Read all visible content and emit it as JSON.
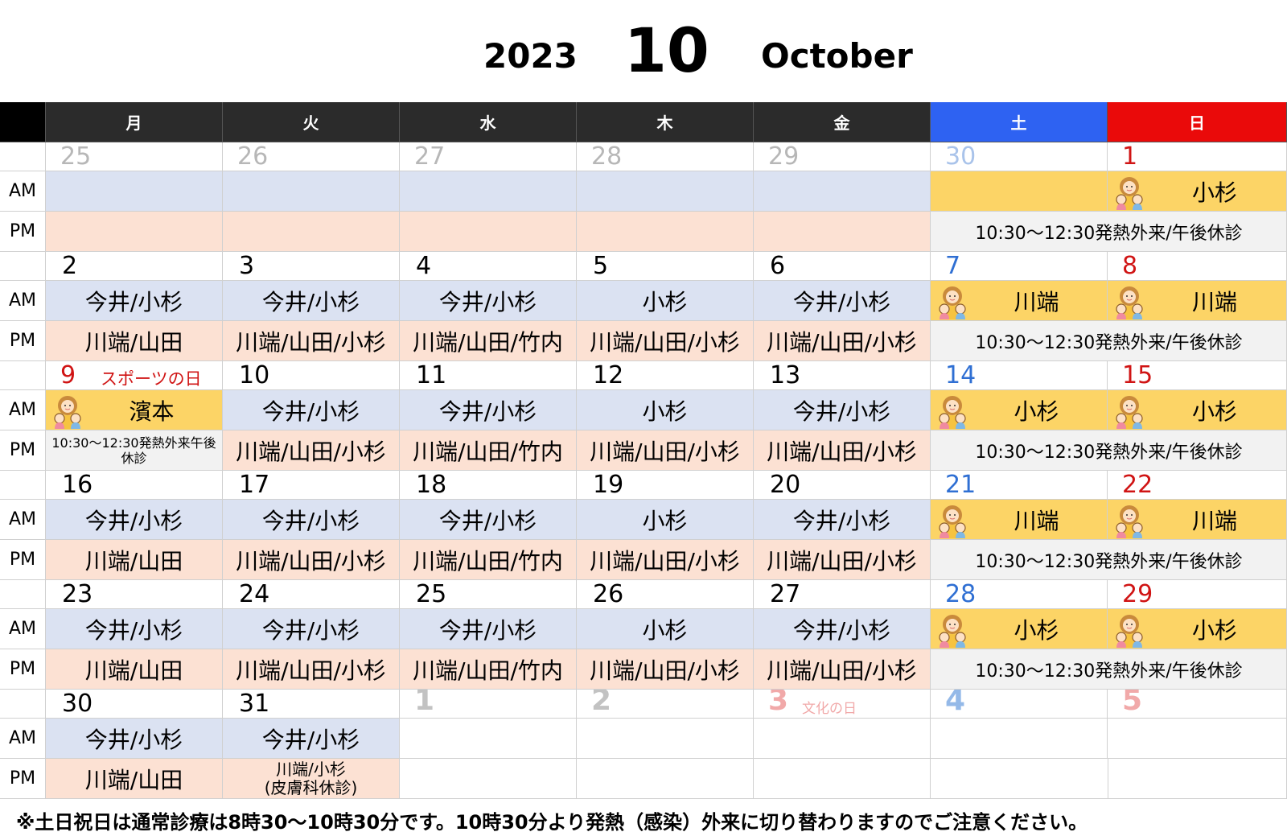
{
  "header": {
    "year": "2023",
    "month_number": "10",
    "month_name": "October"
  },
  "weekdays": [
    "月",
    "火",
    "水",
    "木",
    "金",
    "土",
    "日"
  ],
  "row_labels": {
    "am": "AM",
    "pm": "PM"
  },
  "weekend_pm_note": "10:30～12:30発熱外来/午後休診",
  "colors": {
    "am": "#dbe2f2",
    "pm": "#fce1d3",
    "weekend_am": "#fcd466",
    "weekend_pm": "#f2f2f2",
    "saturday_header": "#2e62f2",
    "sunday_header": "#ea0a0a",
    "header": "#2b2b2b"
  },
  "weeks": [
    {
      "days": [
        {
          "date": "25",
          "style": "muted"
        },
        {
          "date": "26",
          "style": "muted"
        },
        {
          "date": "27",
          "style": "muted"
        },
        {
          "date": "28",
          "style": "muted"
        },
        {
          "date": "29",
          "style": "muted"
        },
        {
          "date": "30",
          "style": "blue-muted"
        },
        {
          "date": "1",
          "style": "red"
        }
      ],
      "am": [
        "",
        "",
        "",
        "",
        "",
        "",
        "小杉"
      ],
      "pm": [
        "",
        "",
        "",
        "",
        ""
      ]
    },
    {
      "days": [
        {
          "date": "2"
        },
        {
          "date": "3"
        },
        {
          "date": "4"
        },
        {
          "date": "5"
        },
        {
          "date": "6"
        },
        {
          "date": "7",
          "style": "blue"
        },
        {
          "date": "8",
          "style": "red"
        }
      ],
      "am": [
        "今井/小杉",
        "今井/小杉",
        "今井/小杉",
        "小杉",
        "今井/小杉",
        "川端",
        "川端"
      ],
      "pm": [
        "川端/山田",
        "川端/山田/小杉",
        "川端/山田/竹内",
        "川端/山田/小杉",
        "川端/山田/小杉"
      ]
    },
    {
      "days": [
        {
          "date": "9",
          "style": "red",
          "holiday": "スポーツの日"
        },
        {
          "date": "10"
        },
        {
          "date": "11"
        },
        {
          "date": "12"
        },
        {
          "date": "13"
        },
        {
          "date": "14",
          "style": "blue"
        },
        {
          "date": "15",
          "style": "red"
        }
      ],
      "am": [
        "濱本",
        "今井/小杉",
        "今井/小杉",
        "小杉",
        "今井/小杉",
        "小杉",
        "小杉"
      ],
      "pm": [
        "10:30～12:30発熱外来午後休診",
        "川端/山田/小杉",
        "川端/山田/竹内",
        "川端/山田/小杉",
        "川端/山田/小杉"
      ]
    },
    {
      "days": [
        {
          "date": "16"
        },
        {
          "date": "17"
        },
        {
          "date": "18"
        },
        {
          "date": "19"
        },
        {
          "date": "20"
        },
        {
          "date": "21",
          "style": "blue"
        },
        {
          "date": "22",
          "style": "red"
        }
      ],
      "am": [
        "今井/小杉",
        "今井/小杉",
        "今井/小杉",
        "小杉",
        "今井/小杉",
        "川端",
        "川端"
      ],
      "pm": [
        "川端/山田",
        "川端/山田/小杉",
        "川端/山田/竹内",
        "川端/山田/小杉",
        "川端/山田/小杉"
      ]
    },
    {
      "days": [
        {
          "date": "23"
        },
        {
          "date": "24"
        },
        {
          "date": "25"
        },
        {
          "date": "26"
        },
        {
          "date": "27"
        },
        {
          "date": "28",
          "style": "blue"
        },
        {
          "date": "29",
          "style": "red"
        }
      ],
      "am": [
        "今井/小杉",
        "今井/小杉",
        "今井/小杉",
        "小杉",
        "今井/小杉",
        "小杉",
        "小杉"
      ],
      "pm": [
        "川端/山田",
        "川端/山田/小杉",
        "川端/山田/竹内",
        "川端/山田/小杉",
        "川端/山田/小杉"
      ]
    },
    {
      "days": [
        {
          "date": "30"
        },
        {
          "date": "31"
        },
        {
          "date": "1",
          "style": "fade-gray"
        },
        {
          "date": "2",
          "style": "fade-gray"
        },
        {
          "date": "3",
          "style": "fade-red",
          "holiday": "文化の日"
        },
        {
          "date": "4",
          "style": "fade-blue"
        },
        {
          "date": "5",
          "style": "fade-red"
        }
      ],
      "am": [
        "今井/小杉",
        "今井/小杉",
        "",
        "",
        "",
        "",
        ""
      ],
      "pm": [
        "川端/山田",
        "川端/小杉\n(皮膚科休診)",
        "",
        "",
        ""
      ]
    }
  ],
  "footer_note": "※土日祝日は通常診療は8時30～10時30分です。10時30分より発熱（感染）外来に切り替わりますのでご注意ください。"
}
